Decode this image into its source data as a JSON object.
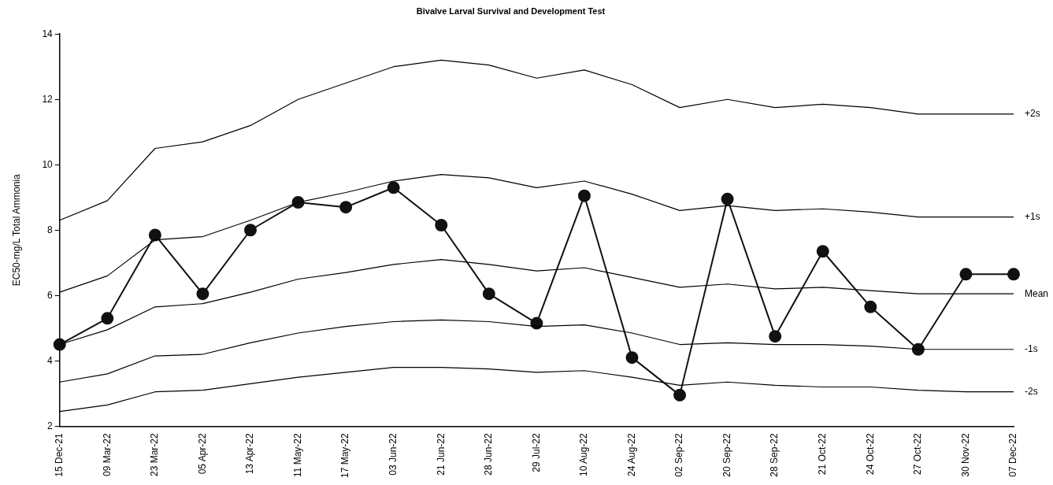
{
  "chart_data": {
    "type": "line",
    "title": "Bivalve Larval Survival and Development Test",
    "ylabel": "EC50-mg/L Total Ammonia",
    "categories": [
      "15 Dec-21",
      "09 Mar-22",
      "23 Mar-22",
      "05 Apr-22",
      "13 Apr-22",
      "11 May-22",
      "17 May-22",
      "03 Jun-22",
      "21 Jun-22",
      "28 Jun-22",
      "29 Jul-22",
      "10 Aug-22",
      "24 Aug-22",
      "02 Sep-22",
      "20 Sep-22",
      "28 Sep-22",
      "21 Oct-22",
      "24 Oct-22",
      "27 Oct-22",
      "30 Nov-22",
      "07 Dec-22"
    ],
    "ylim": [
      2,
      14
    ],
    "yticks": [
      2,
      4,
      6,
      8,
      10,
      12,
      14
    ],
    "grid": false,
    "legend": false,
    "marker": "circle",
    "line_style": "solid",
    "series": [
      {
        "name": "+2s",
        "color": "#000000",
        "marker": "none",
        "values": [
          8.3,
          8.9,
          10.5,
          10.7,
          11.2,
          12.0,
          12.5,
          13.0,
          13.2,
          13.05,
          12.65,
          12.9,
          12.45,
          11.75,
          12.0,
          11.75,
          11.85,
          11.75,
          11.55,
          11.55,
          11.55
        ]
      },
      {
        "name": "+1s",
        "color": "#000000",
        "marker": "none",
        "values": [
          6.1,
          6.6,
          7.7,
          7.8,
          8.3,
          8.85,
          9.15,
          9.5,
          9.7,
          9.6,
          9.3,
          9.5,
          9.1,
          8.6,
          8.75,
          8.6,
          8.65,
          8.55,
          8.4,
          8.4,
          8.4
        ]
      },
      {
        "name": "Mean",
        "color": "#000000",
        "marker": "none",
        "values": [
          4.5,
          4.95,
          5.65,
          5.75,
          6.1,
          6.5,
          6.7,
          6.95,
          7.1,
          6.95,
          6.75,
          6.85,
          6.55,
          6.25,
          6.35,
          6.2,
          6.25,
          6.15,
          6.05,
          6.05,
          6.05
        ]
      },
      {
        "name": "-1s",
        "color": "#000000",
        "marker": "none",
        "values": [
          3.35,
          3.6,
          4.15,
          4.2,
          4.55,
          4.85,
          5.05,
          5.2,
          5.25,
          5.2,
          5.05,
          5.1,
          4.85,
          4.5,
          4.55,
          4.5,
          4.5,
          4.45,
          4.35,
          4.35,
          4.35
        ]
      },
      {
        "name": "-2s",
        "color": "#000000",
        "marker": "none",
        "values": [
          2.45,
          2.65,
          3.05,
          3.1,
          3.3,
          3.5,
          3.65,
          3.8,
          3.8,
          3.75,
          3.65,
          3.7,
          3.5,
          3.25,
          3.35,
          3.25,
          3.2,
          3.2,
          3.1,
          3.05,
          3.05
        ]
      },
      {
        "color": "#111111",
        "values": [
          4.5,
          5.3,
          7.85,
          6.05,
          8.0,
          8.85,
          8.7,
          9.3,
          8.15,
          6.05,
          5.15,
          9.05,
          4.1,
          2.95,
          8.95,
          4.75,
          7.35,
          5.65,
          4.35,
          6.65,
          6.65
        ]
      }
    ]
  }
}
